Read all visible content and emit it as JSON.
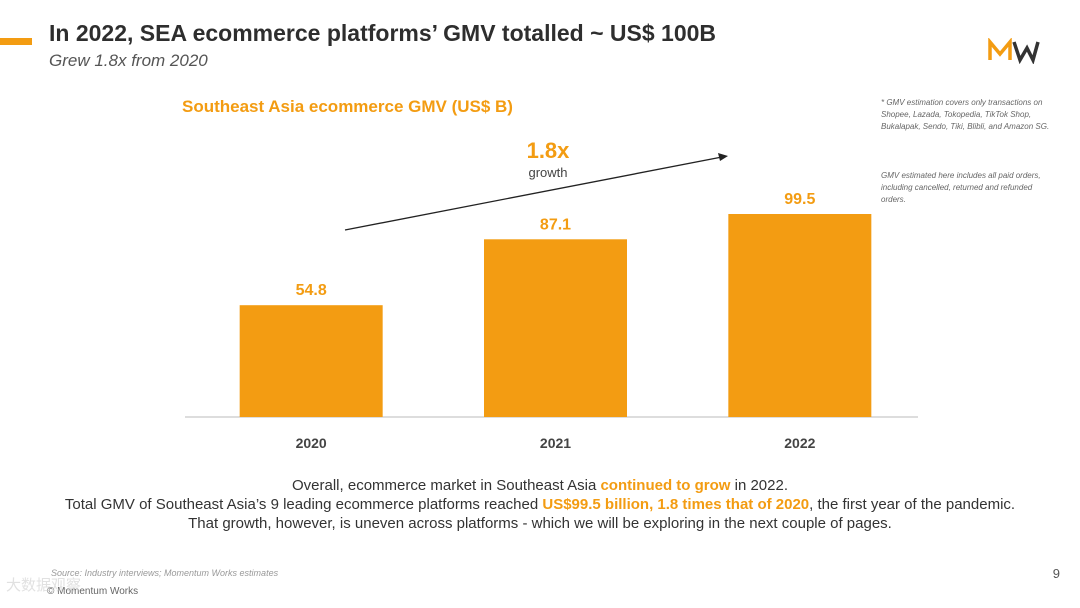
{
  "header": {
    "title": "In 2022, SEA ecommerce platforms’ GMV totalled ~ US$ 100B",
    "subtitle": "Grew 1.8x from 2020",
    "logo_text": "MW"
  },
  "notes": [
    "* GMV estimation covers only transactions on Shopee, Lazada, Tokopedia, TikTok Shop, Bukalapak, Sendo, Tiki, Blibli, and Amazon SG.",
    "GMV estimated here includes all paid orders, including cancelled, returned and refunded orders."
  ],
  "chart_data": {
    "type": "bar",
    "title": "Southeast Asia ecommerce GMV (US$ B)",
    "categories": [
      "2020",
      "2021",
      "2022"
    ],
    "values": [
      54.8,
      87.1,
      99.5
    ],
    "value_labels": [
      "54.8",
      "87.1",
      "99.5"
    ],
    "xlabel": "",
    "ylabel": "",
    "ylim": [
      0,
      110
    ],
    "grid": false,
    "legend": "none",
    "annotation": {
      "text": "1.8x",
      "subtext": "growth"
    },
    "bar_color": "#F39C12"
  },
  "summary": {
    "line1": {
      "pre": "Overall, ecommerce market in Southeast Asia ",
      "hl": "continued to grow",
      "post": " in 2022."
    },
    "line2": {
      "pre": "Total GMV of Southeast Asia’s 9 leading ecommerce platforms reached ",
      "hl": "US$99.5 billion, 1.8 times that of 2020",
      "post": ", the first year of the pandemic."
    },
    "line3": "That growth, however, is uneven across platforms - which we will be exploring in the next couple of pages."
  },
  "footer": {
    "source": "Source: Industry interviews; Momentum Works estimates",
    "copyright": "© Momentum Works",
    "page_number": "9",
    "watermark": "大数据观察"
  },
  "colors": {
    "accent": "#F39C12",
    "text": "#333333"
  }
}
